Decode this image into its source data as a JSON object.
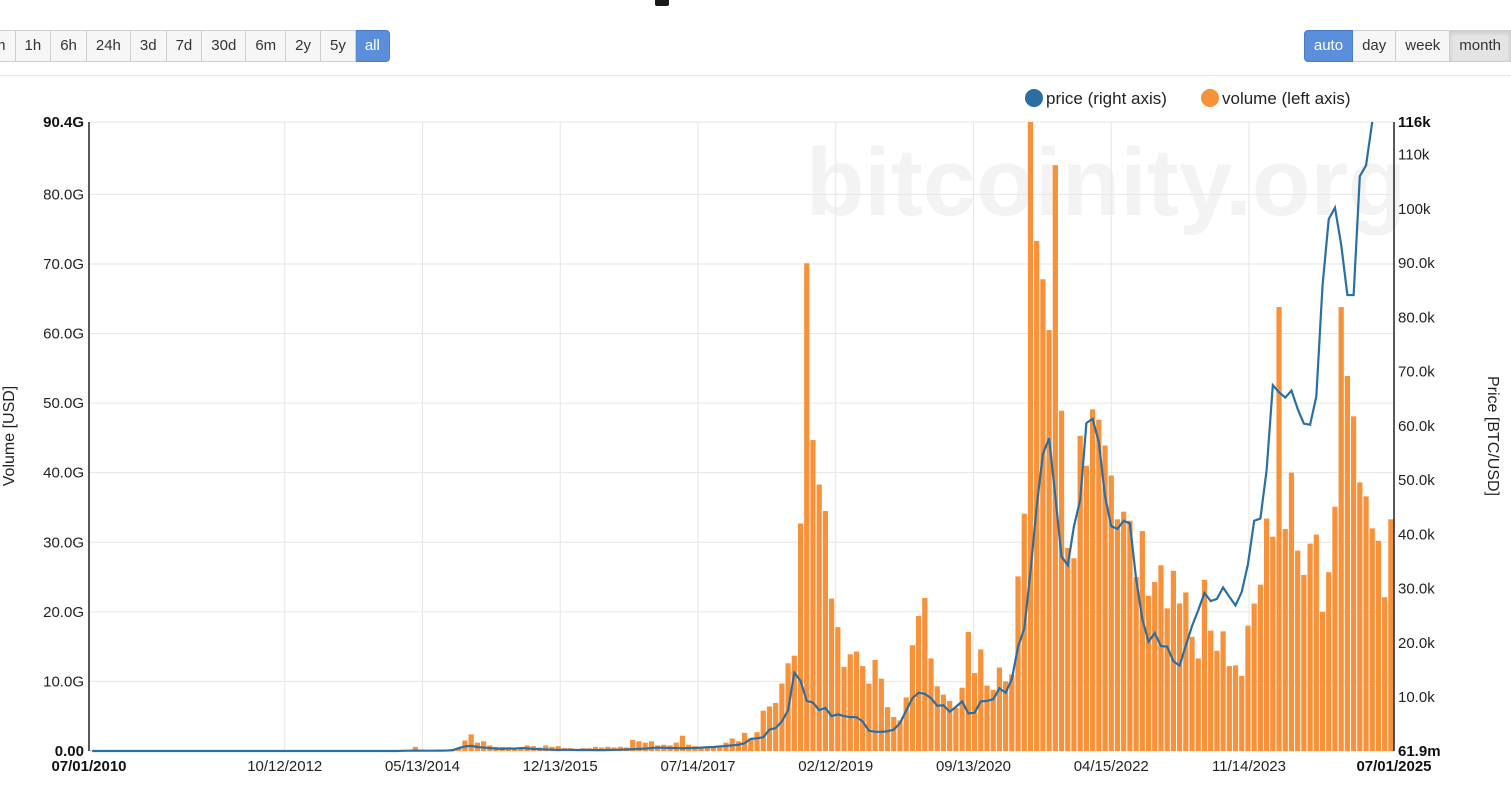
{
  "toolbar": {
    "range_buttons": [
      "m",
      "1h",
      "6h",
      "24h",
      "3d",
      "7d",
      "30d",
      "6m",
      "2y",
      "5y",
      "all"
    ],
    "range_active": "all",
    "resolution_buttons": [
      "auto",
      "day",
      "week",
      "month"
    ],
    "resolution_active": "auto",
    "resolution_pressed": "month"
  },
  "watermark": "bitcoinity.org",
  "colors": {
    "volume": "#f7923a",
    "price": "#2b6ea3",
    "grid": "#e6e6e6",
    "active_button": "#5b8fdc"
  },
  "chart_data": {
    "type": "bar",
    "x_ticks": [
      "07/01/2010",
      "10/12/2012",
      "05/13/2014",
      "12/13/2015",
      "07/14/2017",
      "02/12/2019",
      "09/13/2020",
      "04/15/2022",
      "11/14/2023",
      "07/01/2025"
    ],
    "x_start": "2010-07",
    "x_end": "2025-07",
    "x_interval": "month",
    "ylabel": "Volume [USD]",
    "y2label": "Price [BTC/USD]",
    "y_ticks": [
      "0.00",
      "10.0G",
      "20.0G",
      "30.0G",
      "40.0G",
      "50.0G",
      "60.0G",
      "70.0G",
      "80.0G",
      "90.4G"
    ],
    "y2_ticks": [
      "61.9m",
      "10.0k",
      "20.0k",
      "30.0k",
      "40.0k",
      "50.0k",
      "60.0k",
      "70.0k",
      "80.0k",
      "90.0k",
      "100k",
      "110k",
      "116k"
    ],
    "ylim": [
      0,
      90.4
    ],
    "y2lim": [
      0.0619,
      116
    ],
    "legend": {
      "position": "top-right"
    },
    "grid": true,
    "series": [
      {
        "name": "volume (left axis)",
        "axis": "left",
        "unit": "G USD",
        "values": [
          0.03,
          0.03,
          0.03,
          0.03,
          0.03,
          0.03,
          0.03,
          0.03,
          0.03,
          0.03,
          0.03,
          0.03,
          0.03,
          0.03,
          0.03,
          0.03,
          0.03,
          0.03,
          0.03,
          0.03,
          0.03,
          0.03,
          0.03,
          0.03,
          0.03,
          0.03,
          0.03,
          0.03,
          0.03,
          0.03,
          0.03,
          0.03,
          0.03,
          0.03,
          0.03,
          0.03,
          0.03,
          0.03,
          0.03,
          0.03,
          0.03,
          0.03,
          0.03,
          0.03,
          0.03,
          0.03,
          0.03,
          0.03,
          0.03,
          0.03,
          0.03,
          0.03,
          0.6,
          0.2,
          0.1,
          0.1,
          0.2,
          0.2,
          0.3,
          0.4,
          1.5,
          2.4,
          1.2,
          1.4,
          0.8,
          0.6,
          0.6,
          0.3,
          0.4,
          0.4,
          0.8,
          0.7,
          0.5,
          0.8,
          0.6,
          0.7,
          0.4,
          0.4,
          0.3,
          0.4,
          0.4,
          0.6,
          0.5,
          0.6,
          0.5,
          0.6,
          0.5,
          1.6,
          1.4,
          1.2,
          1.4,
          0.8,
          0.9,
          0.8,
          1.2,
          2.2,
          0.9,
          0.7,
          0.5,
          0.5,
          0.6,
          0.8,
          1.2,
          1.8,
          1.4,
          2.6,
          1.8,
          2.7,
          5.8,
          6.4,
          6.9,
          9.7,
          12.6,
          13.7,
          32.7,
          70.1,
          44.7,
          38.3,
          34.5,
          21.9,
          17.8,
          12.1,
          13.9,
          14.3,
          12.2,
          9.7,
          13.1,
          10.4,
          6.3,
          4.9,
          4.4,
          7.7,
          15.2,
          19.4,
          22.0,
          13.3,
          9.3,
          8.1,
          7.2,
          6.2,
          9.1,
          17.1,
          11.2,
          14.6,
          9.4,
          8.8,
          12.0,
          10.0,
          11.0,
          25.1,
          34.1,
          90.4,
          73.3,
          67.8,
          60.5,
          84.2,
          48.9,
          29.2,
          27.7,
          45.3,
          41.0,
          49.1,
          47.6,
          43.9,
          39.6,
          33.3,
          34.4,
          33.1,
          25.0,
          31.6,
          22.3,
          24.3,
          26.7,
          20.5,
          25.9,
          21.2,
          22.8,
          16.4,
          13.3,
          24.6,
          17.3,
          14.4,
          17.2,
          12.2,
          12.3,
          10.8,
          18.0,
          21.2,
          23.9,
          33.4,
          30.8,
          63.8,
          31.9,
          40.0,
          28.8,
          25.3,
          29.8,
          31.1,
          20.0,
          25.7,
          35.1,
          63.8,
          53.9,
          48.1,
          38.6,
          36.6,
          32.0,
          30.2,
          22.1,
          33.3
        ]
      },
      {
        "name": "price (right axis)",
        "axis": "right",
        "unit": "k USD",
        "values": [
          0.0619,
          0.0619,
          0.0619,
          0.0619,
          0.0619,
          0.0619,
          0.0619,
          0.0619,
          0.0619,
          0.0619,
          0.0619,
          0.0619,
          0.0619,
          0.0619,
          0.0619,
          0.0619,
          0.0619,
          0.0619,
          0.0619,
          0.0619,
          0.0619,
          0.0619,
          0.0619,
          0.0619,
          0.0619,
          0.0619,
          0.0619,
          0.0619,
          0.0619,
          0.0619,
          0.0619,
          0.0619,
          0.0619,
          0.0619,
          0.0619,
          0.0619,
          0.0619,
          0.0619,
          0.0619,
          0.0619,
          0.0619,
          0.0619,
          0.0619,
          0.0619,
          0.0619,
          0.0619,
          0.0619,
          0.0619,
          0.0619,
          0.05,
          0.1,
          0.12,
          0.13,
          0.12,
          0.12,
          0.12,
          0.13,
          0.14,
          0.2,
          0.6,
          0.9,
          1.0,
          0.8,
          0.7,
          0.6,
          0.5,
          0.45,
          0.55,
          0.5,
          0.6,
          0.55,
          0.45,
          0.4,
          0.35,
          0.3,
          0.25,
          0.3,
          0.28,
          0.25,
          0.25,
          0.24,
          0.23,
          0.23,
          0.25,
          0.28,
          0.3,
          0.35,
          0.4,
          0.45,
          0.5,
          0.6,
          0.7,
          0.65,
          0.62,
          0.6,
          0.55,
          0.6,
          0.6,
          0.7,
          0.75,
          0.8,
          0.9,
          1.0,
          1.1,
          1.2,
          1.5,
          2.3,
          2.4,
          2.6,
          4.0,
          4.3,
          5.5,
          7.6,
          14.5,
          13.0,
          9.3,
          9.0,
          7.6,
          8.0,
          6.5,
          6.8,
          6.5,
          6.3,
          6.3,
          5.5,
          3.8,
          3.6,
          3.6,
          3.7,
          4.0,
          5.2,
          7.5,
          9.8,
          10.8,
          10.6,
          9.8,
          8.4,
          8.5,
          7.3,
          8.2,
          9.2,
          7.0,
          7.1,
          9.2,
          9.3,
          9.6,
          11.6,
          10.8,
          13.3,
          19.3,
          22.6,
          33.1,
          45.1,
          54.8,
          57.7,
          47.0,
          35.9,
          34.3,
          41.5,
          46.3,
          60.5,
          61.3,
          57.0,
          47.0,
          41.5,
          41.0,
          42.5,
          42.0,
          31.8,
          24.4,
          20.2,
          21.8,
          19.4,
          19.3,
          16.6,
          15.8,
          19.5,
          23.1,
          26.0,
          29.2,
          27.7,
          28.1,
          30.2,
          28.5,
          26.9,
          29.4,
          34.5,
          42.5,
          42.9,
          51.8,
          67.5,
          66.2,
          65.2,
          66.5,
          63.1,
          60.4,
          60.2,
          65.4,
          85.9,
          98.1,
          100.2,
          93.4,
          84.1,
          84.1,
          106.0,
          108.0,
          116.0
        ]
      }
    ]
  }
}
